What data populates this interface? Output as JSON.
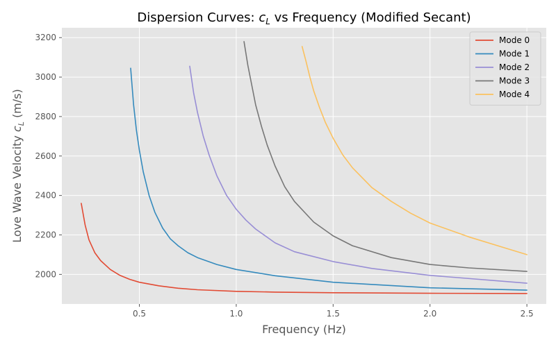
{
  "chart_data": {
    "type": "line",
    "title_prefix": "Dispersion Curves: ",
    "title_symbol": "c",
    "title_symbol_sub": "L",
    "title_suffix": " vs Frequency (Modified Secant)",
    "xlabel": "Frequency (Hz)",
    "ylabel_prefix": "Love Wave Velocity ",
    "ylabel_symbol": "c",
    "ylabel_symbol_sub": "L",
    "ylabel_suffix": " (m/s)",
    "xlim": [
      0.1,
      2.6
    ],
    "ylim": [
      1850,
      3250
    ],
    "xticks": [
      "0.5",
      "1.0",
      "1.5",
      "2.0",
      "2.5"
    ],
    "yticks": [
      "2000",
      "2200",
      "2400",
      "2600",
      "2800",
      "3000",
      "3200"
    ],
    "grid": true,
    "legend_position": "top-right",
    "background": "#e5e5e5",
    "series": [
      {
        "name": "Mode 0",
        "color": "#e24a33",
        "x": [
          0.2,
          0.22,
          0.24,
          0.27,
          0.3,
          0.35,
          0.4,
          0.45,
          0.5,
          0.6,
          0.7,
          0.8,
          1.0,
          1.2,
          1.5,
          2.0,
          2.5
        ],
        "y": [
          2360,
          2250,
          2175,
          2110,
          2070,
          2025,
          1995,
          1975,
          1960,
          1942,
          1930,
          1922,
          1914,
          1910,
          1907,
          1904,
          1903
        ]
      },
      {
        "name": "Mode 1",
        "color": "#348abd",
        "x": [
          0.455,
          0.47,
          0.485,
          0.5,
          0.52,
          0.55,
          0.58,
          0.62,
          0.66,
          0.7,
          0.75,
          0.8,
          0.9,
          1.0,
          1.2,
          1.5,
          2.0,
          2.5
        ],
        "y": [
          3045,
          2860,
          2730,
          2630,
          2520,
          2400,
          2315,
          2235,
          2180,
          2145,
          2110,
          2085,
          2050,
          2025,
          1993,
          1960,
          1932,
          1920
        ]
      },
      {
        "name": "Mode 2",
        "color": "#988ed5",
        "x": [
          0.76,
          0.78,
          0.8,
          0.83,
          0.86,
          0.9,
          0.95,
          1.0,
          1.05,
          1.1,
          1.2,
          1.3,
          1.5,
          1.7,
          2.0,
          2.5
        ],
        "y": [
          3055,
          2920,
          2820,
          2700,
          2605,
          2500,
          2400,
          2330,
          2275,
          2230,
          2160,
          2115,
          2065,
          2030,
          1995,
          1955
        ]
      },
      {
        "name": "Mode 3",
        "color": "#777777",
        "x": [
          1.04,
          1.06,
          1.08,
          1.1,
          1.13,
          1.16,
          1.2,
          1.25,
          1.3,
          1.4,
          1.5,
          1.6,
          1.8,
          2.0,
          2.2,
          2.5
        ],
        "y": [
          3180,
          3060,
          2960,
          2860,
          2750,
          2655,
          2550,
          2445,
          2370,
          2265,
          2195,
          2145,
          2085,
          2050,
          2033,
          2015
        ]
      },
      {
        "name": "Mode 4",
        "color": "#fbc15e",
        "x": [
          1.34,
          1.36,
          1.38,
          1.4,
          1.43,
          1.46,
          1.5,
          1.55,
          1.6,
          1.7,
          1.8,
          1.9,
          2.0,
          2.2,
          2.4,
          2.5
        ],
        "y": [
          3155,
          3080,
          3000,
          2930,
          2845,
          2770,
          2690,
          2605,
          2540,
          2440,
          2370,
          2310,
          2260,
          2190,
          2130,
          2100
        ]
      }
    ]
  }
}
